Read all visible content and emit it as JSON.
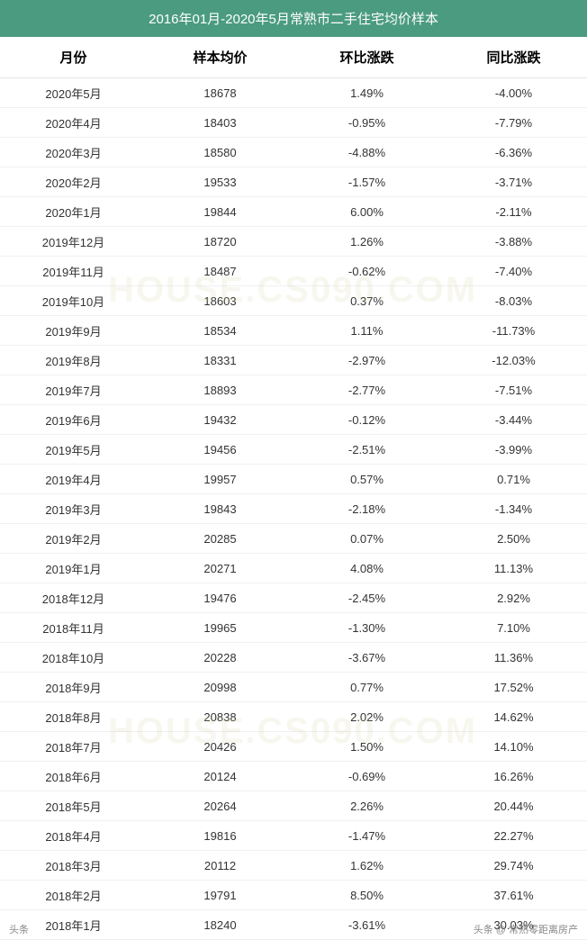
{
  "title": "2016年01月-2020年5月常熟市二手住宅均价样本",
  "columns": [
    "月份",
    "样本均价",
    "环比涨跌",
    "同比涨跌"
  ],
  "rows": [
    [
      "2020年5月",
      "18678",
      "1.49%",
      "-4.00%"
    ],
    [
      "2020年4月",
      "18403",
      "-0.95%",
      "-7.79%"
    ],
    [
      "2020年3月",
      "18580",
      "-4.88%",
      "-6.36%"
    ],
    [
      "2020年2月",
      "19533",
      "-1.57%",
      "-3.71%"
    ],
    [
      "2020年1月",
      "19844",
      "6.00%",
      "-2.11%"
    ],
    [
      "2019年12月",
      "18720",
      "1.26%",
      "-3.88%"
    ],
    [
      "2019年11月",
      "18487",
      "-0.62%",
      "-7.40%"
    ],
    [
      "2019年10月",
      "18603",
      "0.37%",
      "-8.03%"
    ],
    [
      "2019年9月",
      "18534",
      "1.11%",
      "-11.73%"
    ],
    [
      "2019年8月",
      "18331",
      "-2.97%",
      "-12.03%"
    ],
    [
      "2019年7月",
      "18893",
      "-2.77%",
      "-7.51%"
    ],
    [
      "2019年6月",
      "19432",
      "-0.12%",
      "-3.44%"
    ],
    [
      "2019年5月",
      "19456",
      "-2.51%",
      "-3.99%"
    ],
    [
      "2019年4月",
      "19957",
      "0.57%",
      "0.71%"
    ],
    [
      "2019年3月",
      "19843",
      "-2.18%",
      "-1.34%"
    ],
    [
      "2019年2月",
      "20285",
      "0.07%",
      "2.50%"
    ],
    [
      "2019年1月",
      "20271",
      "4.08%",
      "11.13%"
    ],
    [
      "2018年12月",
      "19476",
      "-2.45%",
      "2.92%"
    ],
    [
      "2018年11月",
      "19965",
      "-1.30%",
      "7.10%"
    ],
    [
      "2018年10月",
      "20228",
      "-3.67%",
      "11.36%"
    ],
    [
      "2018年9月",
      "20998",
      "0.77%",
      "17.52%"
    ],
    [
      "2018年8月",
      "20838",
      "2.02%",
      "14.62%"
    ],
    [
      "2018年7月",
      "20426",
      "1.50%",
      "14.10%"
    ],
    [
      "2018年6月",
      "20124",
      "-0.69%",
      "16.26%"
    ],
    [
      "2018年5月",
      "20264",
      "2.26%",
      "20.44%"
    ],
    [
      "2018年4月",
      "19816",
      "-1.47%",
      "22.27%"
    ],
    [
      "2018年3月",
      "20112",
      "1.62%",
      "29.74%"
    ],
    [
      "2018年2月",
      "19791",
      "8.50%",
      "37.61%"
    ],
    [
      "2018年1月",
      "18240",
      "-3.61%",
      "30.03%"
    ]
  ],
  "watermark": "HOUSE.CS090.COM",
  "footer_left": "头条",
  "footer_right": "头条 @ 常熟零距离房产",
  "style": {
    "header_bg": "#4a9b7f",
    "header_text_color": "#ffffff",
    "row_border_color": "#f0f0f0",
    "text_color": "#333333",
    "title_fontsize": 15,
    "th_fontsize": 15,
    "td_fontsize": 13
  }
}
